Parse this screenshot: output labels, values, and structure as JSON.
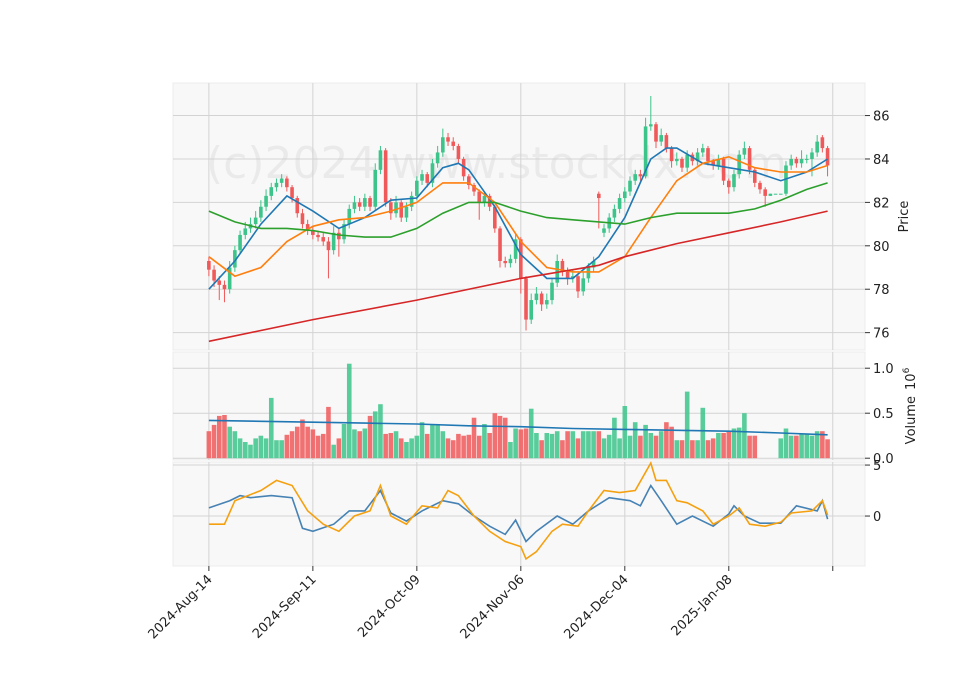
{
  "chart_data": [
    {
      "type": "candlestick",
      "ylabel": "Price",
      "watermark": "(c)2024 www.stockdx.com",
      "up_color": "#3cc48a",
      "down_color": "#f0595a",
      "grid": true,
      "xlim": [
        -6.9,
        126.2
      ],
      "ylim": [
        75.2,
        87.5
      ],
      "yticks": [
        76,
        78,
        80,
        82,
        84,
        86
      ],
      "open": [
        79.3,
        78.9,
        78.4,
        78.2,
        78.0,
        79.0,
        79.8,
        80.5,
        80.8,
        81.0,
        81.3,
        81.8,
        82.3,
        82.7,
        82.9,
        83.1,
        82.7,
        82.2,
        81.5,
        81.0,
        80.7,
        80.5,
        80.4,
        80.2,
        79.8,
        80.6,
        80.3,
        81.0,
        81.7,
        82.0,
        81.8,
        82.2,
        81.8,
        83.5,
        84.4,
        82.0,
        81.5,
        82.0,
        81.3,
        81.8,
        82.3,
        83.0,
        83.3,
        82.9,
        83.8,
        84.3,
        85.0,
        84.8,
        84.6,
        84.0,
        83.2,
        82.8,
        82.5,
        82.0,
        82.3,
        81.8,
        80.8,
        79.3,
        79.2,
        79.4,
        80.3,
        78.5,
        76.6,
        77.5,
        77.8,
        77.3,
        77.5,
        78.3,
        79.3,
        78.8,
        78.5,
        78.6,
        77.9,
        78.5,
        79.0,
        82.4,
        80.6,
        80.8,
        81.3,
        81.7,
        82.2,
        82.5,
        83.0,
        83.3,
        83.2,
        85.5,
        85.6,
        84.8,
        85.1,
        84.5,
        83.9,
        84.0,
        83.6,
        84.2,
        83.9,
        84.3,
        84.5,
        83.9,
        83.7,
        84.0,
        83.0,
        82.7,
        83.3,
        84.2,
        84.5,
        83.5,
        82.9,
        82.6,
        82.3,
        82.4,
        82.4,
        82.4,
        83.7,
        84.0,
        83.8,
        84.0,
        84.0,
        84.3,
        85.0,
        84.5
      ],
      "high": [
        79.5,
        79.1,
        78.6,
        78.4,
        79.3,
        80.0,
        80.7,
        81.1,
        81.3,
        81.6,
        82.1,
        82.6,
        82.9,
        83.1,
        83.3,
        83.2,
        82.8,
        82.3,
        81.7,
        81.2,
        80.9,
        80.7,
        80.6,
        80.4,
        80.9,
        80.8,
        81.2,
        81.9,
        82.3,
        82.2,
        82.4,
        82.3,
        83.8,
        84.6,
        84.5,
        82.2,
        82.3,
        82.1,
        82.0,
        82.5,
        83.2,
        83.5,
        83.4,
        84.0,
        84.6,
        85.4,
        85.2,
        85.0,
        84.7,
        84.1,
        83.3,
        82.9,
        82.6,
        82.5,
        82.4,
        81.9,
        80.9,
        79.5,
        79.6,
        80.6,
        80.4,
        78.6,
        77.8,
        78.1,
        77.9,
        77.8,
        78.5,
        79.6,
        79.4,
        79.0,
        78.9,
        78.7,
        78.8,
        79.2,
        79.5,
        82.5,
        81.0,
        81.5,
        81.9,
        82.4,
        82.7,
        83.2,
        83.5,
        83.5,
        85.9,
        86.9,
        85.7,
        85.4,
        85.2,
        84.6,
        84.3,
        84.1,
        84.4,
        84.3,
        84.5,
        84.7,
        84.6,
        84.0,
        84.2,
        84.1,
        83.1,
        83.5,
        84.4,
        84.8,
        84.6,
        83.6,
        83.0,
        82.7,
        82.4,
        82.4,
        82.4,
        83.9,
        84.2,
        84.1,
        84.4,
        84.2,
        84.5,
        85.1,
        85.1,
        84.6
      ],
      "low": [
        78.6,
        78.1,
        77.5,
        77.4,
        77.8,
        78.8,
        79.6,
        80.3,
        80.6,
        80.8,
        81.1,
        81.6,
        82.1,
        82.5,
        82.7,
        82.5,
        82.0,
        81.3,
        80.8,
        80.5,
        80.3,
        80.2,
        80.0,
        78.5,
        79.6,
        79.5,
        80.1,
        80.8,
        81.5,
        81.6,
        81.6,
        81.6,
        81.6,
        83.3,
        81.8,
        81.2,
        81.3,
        81.1,
        81.1,
        81.6,
        82.1,
        82.8,
        82.7,
        82.7,
        83.6,
        84.1,
        84.6,
        84.4,
        83.8,
        83.0,
        82.6,
        82.3,
        81.2,
        81.8,
        81.6,
        80.6,
        79.0,
        79.0,
        79.0,
        79.2,
        77.8,
        76.1,
        76.4,
        77.3,
        77.0,
        77.1,
        77.3,
        78.1,
        78.6,
        78.2,
        78.3,
        77.6,
        77.7,
        78.3,
        78.8,
        80.8,
        80.4,
        80.6,
        81.1,
        81.5,
        82.0,
        82.3,
        82.8,
        83.0,
        83.1,
        85.3,
        84.5,
        84.6,
        84.3,
        83.6,
        83.7,
        83.4,
        83.4,
        83.7,
        83.7,
        84.1,
        83.7,
        83.5,
        83.5,
        82.8,
        82.4,
        82.5,
        83.1,
        84.0,
        83.3,
        82.7,
        82.4,
        81.8,
        82.3,
        82.4,
        82.4,
        82.3,
        83.5,
        83.6,
        83.6,
        83.8,
        83.2,
        84.1,
        84.3,
        83.2
      ],
      "close": [
        78.9,
        78.4,
        78.2,
        78.0,
        79.0,
        79.8,
        80.5,
        80.8,
        81.0,
        81.3,
        81.8,
        82.3,
        82.7,
        82.9,
        83.1,
        82.7,
        82.2,
        81.5,
        81.0,
        80.7,
        80.5,
        80.4,
        80.2,
        79.8,
        80.6,
        80.3,
        81.0,
        81.7,
        82.0,
        81.8,
        82.2,
        81.8,
        83.5,
        84.4,
        82.0,
        81.5,
        82.0,
        81.3,
        81.8,
        82.3,
        83.0,
        83.3,
        82.9,
        83.8,
        84.3,
        85.0,
        84.8,
        84.6,
        84.0,
        83.2,
        82.8,
        82.5,
        82.0,
        82.3,
        81.8,
        80.8,
        79.3,
        79.2,
        79.4,
        80.3,
        78.5,
        76.6,
        77.5,
        77.8,
        77.3,
        77.5,
        78.3,
        79.3,
        78.8,
        78.5,
        78.6,
        77.9,
        78.5,
        79.0,
        79.3,
        82.2,
        80.8,
        81.3,
        81.7,
        82.2,
        82.5,
        83.0,
        83.3,
        83.2,
        85.5,
        85.6,
        84.8,
        85.1,
        84.5,
        83.9,
        84.0,
        83.6,
        84.2,
        83.9,
        84.3,
        84.5,
        83.9,
        83.7,
        84.0,
        83.0,
        82.7,
        83.3,
        84.2,
        84.5,
        83.5,
        82.9,
        82.6,
        82.3,
        82.4,
        82.4,
        82.4,
        83.7,
        84.0,
        83.8,
        84.0,
        84.0,
        84.3,
        84.8,
        84.5,
        83.7
      ],
      "series": [
        {
          "color": "#1f77b4",
          "x": [
            0,
            5,
            10,
            15,
            20,
            25,
            30,
            35,
            40,
            45,
            48,
            50,
            55,
            60,
            65,
            70,
            75,
            80,
            85,
            88,
            90,
            95,
            100,
            105,
            110,
            115,
            119
          ],
          "values": [
            78.0,
            79.3,
            81.0,
            82.3,
            81.6,
            80.8,
            81.3,
            82.1,
            82.2,
            83.6,
            83.8,
            83.5,
            81.8,
            79.6,
            78.5,
            78.5,
            79.5,
            81.3,
            84.0,
            84.5,
            84.5,
            83.8,
            83.6,
            83.4,
            83.0,
            83.4,
            84.0
          ]
        },
        {
          "color": "#ff7f0e",
          "x": [
            0,
            5,
            10,
            15,
            20,
            25,
            30,
            35,
            40,
            45,
            50,
            55,
            60,
            65,
            70,
            75,
            80,
            85,
            90,
            95,
            100,
            105,
            110,
            115,
            119
          ],
          "values": [
            79.5,
            78.6,
            79.0,
            80.2,
            80.9,
            81.2,
            81.3,
            81.6,
            82.0,
            82.9,
            82.9,
            82.0,
            80.2,
            79.0,
            78.8,
            78.8,
            79.5,
            81.3,
            83.0,
            83.8,
            84.1,
            83.6,
            83.4,
            83.4,
            83.7
          ]
        },
        {
          "color": "#2ca02c",
          "x": [
            0,
            5,
            10,
            15,
            20,
            25,
            30,
            35,
            40,
            45,
            50,
            55,
            60,
            65,
            70,
            75,
            80,
            85,
            90,
            95,
            100,
            105,
            110,
            115,
            119
          ],
          "values": [
            81.6,
            81.1,
            80.8,
            80.8,
            80.7,
            80.5,
            80.4,
            80.4,
            80.8,
            81.5,
            82.0,
            82.0,
            81.6,
            81.3,
            81.2,
            81.1,
            81.0,
            81.3,
            81.5,
            81.5,
            81.5,
            81.7,
            82.1,
            82.6,
            82.9
          ]
        },
        {
          "color": "#d62728",
          "x": [
            0,
            20,
            40,
            60,
            75,
            80,
            90,
            100,
            110,
            119
          ],
          "values": [
            75.6,
            76.6,
            77.5,
            78.5,
            79.1,
            79.5,
            80.1,
            80.6,
            81.1,
            81.6
          ]
        }
      ]
    },
    {
      "type": "volume",
      "ylabel": "Volume",
      "offset_base": "10",
      "offset_exponent": "6",
      "xlim": [
        -6.9,
        126.2
      ],
      "ylim": [
        -0.02,
        1.18
      ],
      "yticks": [
        {
          "value": 0,
          "label": "0.0"
        },
        0.5,
        {
          "value": 1,
          "label": "1.0"
        }
      ],
      "grid": true,
      "values": [
        0.3,
        0.37,
        0.47,
        0.48,
        0.35,
        0.3,
        0.22,
        0.18,
        0.15,
        0.22,
        0.25,
        0.22,
        0.67,
        0.2,
        0.2,
        0.26,
        0.3,
        0.35,
        0.43,
        0.35,
        0.32,
        0.25,
        0.27,
        0.57,
        0.15,
        0.22,
        0.38,
        1.05,
        0.32,
        0.3,
        0.33,
        0.47,
        0.52,
        0.6,
        0.27,
        0.28,
        0.3,
        0.22,
        0.18,
        0.22,
        0.25,
        0.4,
        0.27,
        0.38,
        0.37,
        0.3,
        0.22,
        0.2,
        0.27,
        0.25,
        0.26,
        0.45,
        0.25,
        0.38,
        0.28,
        0.5,
        0.47,
        0.45,
        0.18,
        0.33,
        0.32,
        0.33,
        0.55,
        0.28,
        0.2,
        0.28,
        0.27,
        0.3,
        0.2,
        0.3,
        0.3,
        0.22,
        0.3,
        0.3,
        0.3,
        0.3,
        0.22,
        0.26,
        0.45,
        0.22,
        0.58,
        0.25,
        0.4,
        0.25,
        0.37,
        0.28,
        0.25,
        0.3,
        0.4,
        0.35,
        0.2,
        0.2,
        0.74,
        0.2,
        0.2,
        0.56,
        0.2,
        0.22,
        0.28,
        0.28,
        0.3,
        0.33,
        0.34,
        0.5,
        0.25,
        0.25,
        0,
        0,
        0,
        0,
        0.22,
        0.33,
        0.25,
        0.25,
        0.27,
        0.27,
        0.25,
        0.3,
        0.3,
        0.21
      ],
      "series": [
        {
          "color": "#1f77b4",
          "x": [
            0,
            10,
            20,
            30,
            40,
            50,
            60,
            70,
            80,
            90,
            100,
            110,
            119
          ],
          "values": [
            0.42,
            0.41,
            0.4,
            0.39,
            0.38,
            0.36,
            0.35,
            0.33,
            0.32,
            0.31,
            0.3,
            0.28,
            0.26
          ]
        }
      ]
    },
    {
      "type": "line",
      "xlim": [
        -6.9,
        126.2
      ],
      "ylim": [
        -4.9,
        5.3
      ],
      "yticks": [
        0,
        5
      ],
      "grid": true,
      "xticks": [
        {
          "value": 0,
          "label": "2024-Aug-14"
        },
        {
          "value": 20,
          "label": "2024-Sep-11"
        },
        {
          "value": 40,
          "label": "2024-Oct-09"
        },
        {
          "value": 60,
          "label": "2024-Nov-06"
        },
        {
          "value": 80,
          "label": "2024-Dec-04"
        },
        {
          "value": 100,
          "label": "2025-Jan-08"
        },
        {
          "value": 120,
          "label": null
        }
      ],
      "series": [
        {
          "color": "#4682b4",
          "x": [
            0,
            4,
            6,
            8,
            12,
            16,
            18,
            20,
            24,
            27,
            30,
            33,
            35,
            38,
            41,
            45,
            48,
            51,
            54,
            57,
            59,
            61,
            63,
            67,
            70,
            73,
            77,
            81,
            83,
            85,
            87,
            90,
            93,
            97,
            100,
            101,
            103,
            106,
            110,
            113,
            117,
            118,
            119
          ],
          "values": [
            0.8,
            1.5,
            2.0,
            1.8,
            2.0,
            1.8,
            -1.2,
            -1.5,
            -0.8,
            0.5,
            0.5,
            2.5,
            0.3,
            -0.5,
            0.5,
            1.5,
            1.2,
            0,
            -1.0,
            -1.8,
            -0.4,
            -2.5,
            -1.5,
            0,
            -0.8,
            0.5,
            1.8,
            1.5,
            1.0,
            3.0,
            1.5,
            -0.8,
            0,
            -1.0,
            0.2,
            1.0,
            0,
            -0.7,
            -0.7,
            1.0,
            0.5,
            1.5,
            -0.3
          ]
        },
        {
          "color": "#f5a00f",
          "x": [
            0,
            3,
            5,
            10,
            13,
            16,
            19,
            22,
            25,
            28,
            31,
            33,
            35,
            38,
            41,
            44,
            46,
            48,
            51,
            54,
            57,
            60,
            61,
            63,
            66,
            68,
            71,
            73,
            76,
            79,
            82,
            84,
            85,
            86,
            88,
            90,
            92,
            95,
            97,
            100,
            102,
            104,
            107,
            110,
            112,
            116,
            118,
            119
          ],
          "values": [
            -0.8,
            -0.8,
            1.5,
            2.5,
            3.5,
            3.0,
            0.5,
            -0.8,
            -1.5,
            0,
            0.5,
            3.0,
            0,
            -0.8,
            1.0,
            0.8,
            2.5,
            2.0,
            0,
            -1.5,
            -2.5,
            -3.0,
            -4.2,
            -3.5,
            -1.5,
            -0.8,
            -1.0,
            0.5,
            2.5,
            2.3,
            2.5,
            4.3,
            5.2,
            3.5,
            3.5,
            1.5,
            1.3,
            0.5,
            -0.8,
            0,
            0.8,
            -0.8,
            -1.0,
            -0.6,
            0.3,
            0.5,
            1.5,
            0.1
          ]
        }
      ]
    }
  ]
}
